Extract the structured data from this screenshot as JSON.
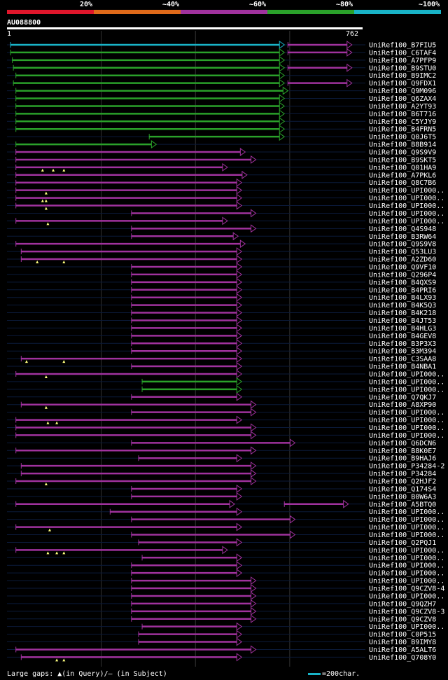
{
  "legend": {
    "labels": [
      "20%",
      "~40%",
      "~60%",
      "~80%",
      "~100%"
    ],
    "colors": [
      "#e0162b",
      "#e06a1a",
      "#a0329e",
      "#2aa12a",
      "#19b3c7"
    ]
  },
  "query": {
    "name": "AU088800",
    "start": "1",
    "end": "762"
  },
  "footer": {
    "gaps_text": "Large gaps: ▲(in Query)/– (in Subject)",
    "scale_text": "=200char."
  },
  "chart_data": {
    "type": "alignment-overview",
    "query_length": 762,
    "hits": [
      {
        "name": "UniRef100_B7FIU5",
        "segs": [
          [
            10,
            780,
            "cyan"
          ],
          [
            790,
            970,
            "magenta"
          ]
        ]
      },
      {
        "name": "UniRef100_C6TAF4",
        "segs": [
          [
            10,
            780,
            "green"
          ],
          [
            790,
            970,
            "magenta"
          ]
        ]
      },
      {
        "name": "UniRef100_A7PFP9",
        "segs": [
          [
            15,
            780,
            "green"
          ]
        ]
      },
      {
        "name": "UniRef100_B9STU0",
        "segs": [
          [
            18,
            780,
            "green"
          ],
          [
            790,
            970,
            "magenta"
          ]
        ]
      },
      {
        "name": "UniRef100_B9IMC2",
        "segs": [
          [
            25,
            780,
            "green"
          ]
        ]
      },
      {
        "name": "UniRef100_Q9FDX1",
        "segs": [
          [
            18,
            780,
            "green"
          ],
          [
            790,
            970,
            "magenta"
          ]
        ]
      },
      {
        "name": "UniRef100_Q9M096",
        "segs": [
          [
            25,
            790,
            "green"
          ]
        ]
      },
      {
        "name": "UniRef100_Q6ZAX4",
        "segs": [
          [
            25,
            780,
            "green"
          ]
        ]
      },
      {
        "name": "UniRef100_A2YT93",
        "segs": [
          [
            25,
            780,
            "green"
          ]
        ]
      },
      {
        "name": "UniRef100_B6T716",
        "segs": [
          [
            25,
            780,
            "green"
          ]
        ]
      },
      {
        "name": "UniRef100_C5YJY9",
        "segs": [
          [
            25,
            780,
            "green"
          ]
        ]
      },
      {
        "name": "UniRef100_B4FRN5",
        "segs": [
          [
            25,
            780,
            "green"
          ]
        ]
      },
      {
        "name": "UniRef100_Q0J6T5",
        "segs": [
          [
            400,
            780,
            "green"
          ]
        ]
      },
      {
        "name": "UniRef100_B8B914",
        "segs": [
          [
            25,
            420,
            "green"
          ]
        ]
      },
      {
        "name": "UniRef100_Q9S9V9",
        "segs": [
          [
            25,
            670,
            "magenta"
          ]
        ]
      },
      {
        "name": "UniRef100_B9SKT5",
        "segs": [
          [
            25,
            700,
            "magenta"
          ]
        ]
      },
      {
        "name": "UniRef100_Q01HA9",
        "segs": [
          [
            25,
            620,
            "magenta"
          ]
        ],
        "marks": [
          100,
          130,
          160
        ]
      },
      {
        "name": "UniRef100_A7PKL6",
        "segs": [
          [
            25,
            675,
            "magenta"
          ]
        ]
      },
      {
        "name": "UniRef100_Q8C7B6",
        "segs": [
          [
            25,
            660,
            "magenta"
          ]
        ]
      },
      {
        "name": "UniRef100_UPI000..",
        "segs": [
          [
            25,
            660,
            "magenta"
          ]
        ],
        "marks": [
          110
        ]
      },
      {
        "name": "UniRef100_UPI000..",
        "segs": [
          [
            25,
            660,
            "magenta"
          ]
        ],
        "marks": [
          100,
          110
        ]
      },
      {
        "name": "UniRef100_UPI000..",
        "segs": [
          [
            25,
            660,
            "magenta"
          ]
        ],
        "marks": [
          110
        ]
      },
      {
        "name": "UniRef100_UPI000..",
        "segs": [
          [
            350,
            700,
            "magenta"
          ]
        ]
      },
      {
        "name": "UniRef100_UPI000..",
        "segs": [
          [
            25,
            620,
            "magenta"
          ]
        ],
        "marks": [
          115
        ]
      },
      {
        "name": "UniRef100_Q4S948",
        "segs": [
          [
            350,
            700,
            "magenta"
          ]
        ]
      },
      {
        "name": "UniRef100_B3RW64",
        "segs": [
          [
            350,
            650,
            "magenta"
          ]
        ]
      },
      {
        "name": "UniRef100_Q9S9V8",
        "segs": [
          [
            25,
            670,
            "magenta"
          ]
        ]
      },
      {
        "name": "UniRef100_Q53LU3",
        "segs": [
          [
            40,
            660,
            "magenta"
          ]
        ]
      },
      {
        "name": "UniRef100_A2ZD60",
        "segs": [
          [
            40,
            660,
            "magenta"
          ]
        ],
        "marks": [
          85,
          160
        ]
      },
      {
        "name": "UniRef100_Q9VF10",
        "segs": [
          [
            350,
            660,
            "magenta"
          ]
        ]
      },
      {
        "name": "UniRef100_Q296P4",
        "segs": [
          [
            350,
            660,
            "magenta"
          ]
        ]
      },
      {
        "name": "UniRef100_B4QXS9",
        "segs": [
          [
            350,
            660,
            "magenta"
          ]
        ]
      },
      {
        "name": "UniRef100_B4PRI6",
        "segs": [
          [
            350,
            660,
            "magenta"
          ]
        ]
      },
      {
        "name": "UniRef100_B4LX93",
        "segs": [
          [
            350,
            660,
            "magenta"
          ]
        ]
      },
      {
        "name": "UniRef100_B4K5Q3",
        "segs": [
          [
            350,
            660,
            "magenta"
          ]
        ]
      },
      {
        "name": "UniRef100_B4K218",
        "segs": [
          [
            350,
            660,
            "magenta"
          ]
        ]
      },
      {
        "name": "UniRef100_B4JT53",
        "segs": [
          [
            350,
            660,
            "magenta"
          ]
        ]
      },
      {
        "name": "UniRef100_B4HLG3",
        "segs": [
          [
            350,
            660,
            "magenta"
          ]
        ]
      },
      {
        "name": "UniRef100_B4GEV8",
        "segs": [
          [
            350,
            660,
            "magenta"
          ]
        ]
      },
      {
        "name": "UniRef100_B3P3X3",
        "segs": [
          [
            350,
            660,
            "magenta"
          ]
        ]
      },
      {
        "name": "UniRef100_B3M394",
        "segs": [
          [
            350,
            660,
            "magenta"
          ]
        ]
      },
      {
        "name": "UniRef100_C3SAA8",
        "segs": [
          [
            40,
            660,
            "magenta"
          ]
        ],
        "marks": [
          55,
          160
        ]
      },
      {
        "name": "UniRef100_B4NBA1",
        "segs": [
          [
            350,
            660,
            "magenta"
          ]
        ]
      },
      {
        "name": "UniRef100_UPI000..",
        "segs": [
          [
            25,
            660,
            "magenta"
          ]
        ],
        "marks": [
          110
        ]
      },
      {
        "name": "UniRef100_UPI000..",
        "segs": [
          [
            380,
            660,
            "green"
          ]
        ]
      },
      {
        "name": "UniRef100_UPI000..",
        "segs": [
          [
            380,
            660,
            "green"
          ]
        ]
      },
      {
        "name": "UniRef100_Q7QKJ7",
        "segs": [
          [
            350,
            660,
            "magenta"
          ]
        ]
      },
      {
        "name": "UniRef100_A8XP90",
        "segs": [
          [
            40,
            700,
            "magenta"
          ]
        ],
        "marks": [
          110
        ]
      },
      {
        "name": "UniRef100_UPI000..",
        "segs": [
          [
            350,
            700,
            "magenta"
          ]
        ]
      },
      {
        "name": "UniRef100_UPI000..",
        "segs": [
          [
            25,
            660,
            "magenta"
          ]
        ],
        "marks": [
          115,
          140
        ]
      },
      {
        "name": "UniRef100_UPI000..",
        "segs": [
          [
            25,
            700,
            "magenta"
          ]
        ]
      },
      {
        "name": "UniRef100_UPI000..",
        "segs": [
          [
            25,
            700,
            "magenta"
          ]
        ]
      },
      {
        "name": "UniRef100_Q6DCN6",
        "segs": [
          [
            350,
            810,
            "magenta"
          ]
        ]
      },
      {
        "name": "UniRef100_B8K0E7",
        "segs": [
          [
            25,
            700,
            "magenta"
          ]
        ]
      },
      {
        "name": "UniRef100_B9HAJ6",
        "segs": [
          [
            370,
            660,
            "magenta"
          ]
        ]
      },
      {
        "name": "UniRef100_P34284-2",
        "segs": [
          [
            40,
            700,
            "magenta"
          ]
        ]
      },
      {
        "name": "UniRef100_P34284",
        "segs": [
          [
            40,
            700,
            "magenta"
          ]
        ]
      },
      {
        "name": "UniRef100_Q2HJF2",
        "segs": [
          [
            25,
            700,
            "magenta"
          ]
        ],
        "marks": [
          110
        ]
      },
      {
        "name": "UniRef100_Q174S4",
        "segs": [
          [
            350,
            660,
            "magenta"
          ]
        ]
      },
      {
        "name": "UniRef100_B0W6A3",
        "segs": [
          [
            350,
            660,
            "magenta"
          ]
        ]
      },
      {
        "name": "UniRef100_A5BTQ0",
        "segs": [
          [
            25,
            640,
            "magenta"
          ],
          [
            780,
            960,
            "magenta"
          ]
        ]
      },
      {
        "name": "UniRef100_UPI000..",
        "segs": [
          [
            290,
            660,
            "magenta"
          ]
        ]
      },
      {
        "name": "UniRef100_UPI000..",
        "segs": [
          [
            350,
            810,
            "magenta"
          ]
        ]
      },
      {
        "name": "UniRef100_UPI000..",
        "segs": [
          [
            25,
            660,
            "magenta"
          ]
        ],
        "marks": [
          120
        ]
      },
      {
        "name": "UniRef100_UPI000..",
        "segs": [
          [
            350,
            810,
            "magenta"
          ]
        ]
      },
      {
        "name": "UniRef100_Q2PQJ1",
        "segs": [
          [
            370,
            660,
            "magenta"
          ]
        ]
      },
      {
        "name": "UniRef100_UPI000..",
        "segs": [
          [
            25,
            620,
            "magenta"
          ]
        ],
        "marks": [
          115,
          140,
          160
        ]
      },
      {
        "name": "UniRef100_UPI000..",
        "segs": [
          [
            380,
            660,
            "magenta"
          ]
        ]
      },
      {
        "name": "UniRef100_UPI000..",
        "segs": [
          [
            350,
            660,
            "magenta"
          ]
        ]
      },
      {
        "name": "UniRef100_UPI000..",
        "segs": [
          [
            350,
            660,
            "magenta"
          ]
        ]
      },
      {
        "name": "UniRef100_UPI000..",
        "segs": [
          [
            350,
            700,
            "magenta"
          ]
        ]
      },
      {
        "name": "UniRef100_Q9CZV8-4",
        "segs": [
          [
            350,
            700,
            "magenta"
          ]
        ]
      },
      {
        "name": "UniRef100_UPI000..",
        "segs": [
          [
            350,
            700,
            "magenta"
          ]
        ]
      },
      {
        "name": "UniRef100_Q9QZH7",
        "segs": [
          [
            350,
            700,
            "magenta"
          ]
        ]
      },
      {
        "name": "UniRef100_Q9CZV8-3",
        "segs": [
          [
            350,
            700,
            "magenta"
          ]
        ]
      },
      {
        "name": "UniRef100_Q9CZV8",
        "segs": [
          [
            350,
            700,
            "magenta"
          ]
        ]
      },
      {
        "name": "UniRef100_UPI000..",
        "segs": [
          [
            380,
            660,
            "magenta"
          ]
        ]
      },
      {
        "name": "UniRef100_C0P515",
        "segs": [
          [
            370,
            660,
            "magenta"
          ]
        ]
      },
      {
        "name": "UniRef100_B9IMY8",
        "segs": [
          [
            370,
            660,
            "magenta"
          ]
        ]
      },
      {
        "name": "UniRef100_A5ALT6",
        "segs": [
          [
            25,
            700,
            "magenta"
          ]
        ]
      },
      {
        "name": "UniRef100_Q708Y0",
        "segs": [
          [
            40,
            660,
            "magenta"
          ]
        ],
        "marks": [
          140,
          160
        ]
      }
    ]
  }
}
